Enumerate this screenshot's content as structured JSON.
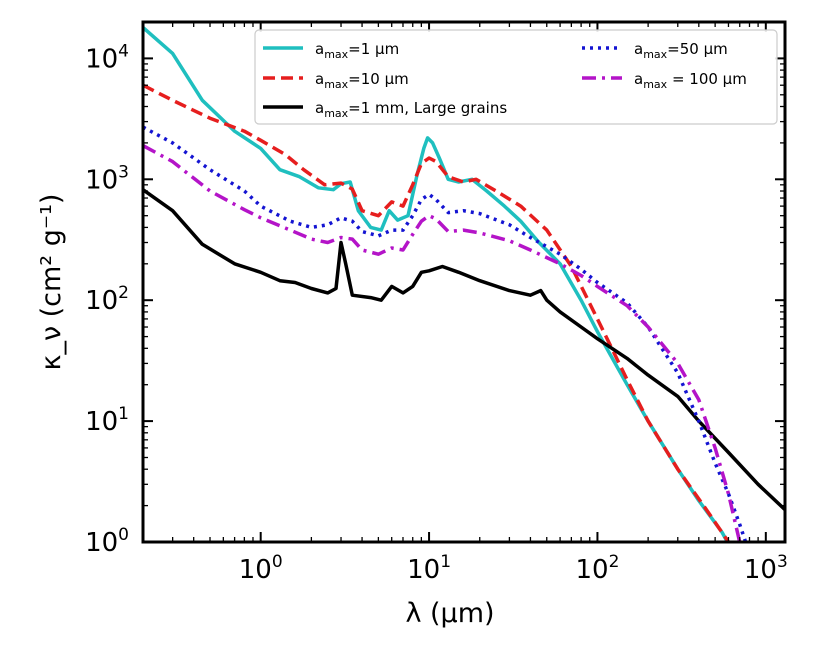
{
  "chart_data": {
    "type": "line",
    "xlabel": "λ (μm)",
    "ylabel": "κ_ν (cm² g⁻¹)",
    "xscale": "log",
    "yscale": "log",
    "xlim": [
      0.2,
      1300
    ],
    "ylim": [
      1,
      20000
    ],
    "grid": false,
    "legend_position": "top-right",
    "x_ticks": [
      {
        "value": 1,
        "mantissa": "10",
        "exp": "0"
      },
      {
        "value": 10,
        "mantissa": "10",
        "exp": "1"
      },
      {
        "value": 100,
        "mantissa": "10",
        "exp": "2"
      },
      {
        "value": 1000,
        "mantissa": "10",
        "exp": "3"
      }
    ],
    "y_ticks": [
      {
        "value": 1,
        "label": "10",
        "exp": "0"
      },
      {
        "value": 10,
        "label": "10",
        "exp": "1"
      },
      {
        "value": 100,
        "label": "10",
        "exp": "2"
      },
      {
        "value": 1000,
        "label": "10",
        "exp": "3"
      },
      {
        "value": 10000,
        "label": "10",
        "exp": "4"
      }
    ],
    "series": [
      {
        "name": "a_max=1 μm",
        "legend_parts": [
          "a",
          "max",
          "=1 μm"
        ],
        "color": "#1fbfbf",
        "dash": "solid",
        "points": [
          [
            0.2,
            18000
          ],
          [
            0.3,
            11000
          ],
          [
            0.45,
            4500
          ],
          [
            0.7,
            2500
          ],
          [
            1.0,
            1800
          ],
          [
            1.3,
            1200
          ],
          [
            1.7,
            1050
          ],
          [
            2.2,
            850
          ],
          [
            2.7,
            820
          ],
          [
            3.0,
            920
          ],
          [
            3.4,
            950
          ],
          [
            3.8,
            550
          ],
          [
            4.5,
            400
          ],
          [
            5.2,
            380
          ],
          [
            5.8,
            550
          ],
          [
            6.5,
            460
          ],
          [
            7.5,
            500
          ],
          [
            8.5,
            1100
          ],
          [
            9.3,
            1800
          ],
          [
            9.8,
            2200
          ],
          [
            10.5,
            2000
          ],
          [
            11.5,
            1500
          ],
          [
            13,
            1000
          ],
          [
            15,
            950
          ],
          [
            18,
            1000
          ],
          [
            22,
            800
          ],
          [
            28,
            600
          ],
          [
            35,
            450
          ],
          [
            45,
            300
          ],
          [
            60,
            200
          ],
          [
            80,
            100
          ],
          [
            100,
            55
          ],
          [
            150,
            20
          ],
          [
            200,
            10
          ],
          [
            300,
            4
          ],
          [
            400,
            2.2
          ],
          [
            550,
            1.2
          ],
          [
            700,
            0.65
          ]
        ]
      },
      {
        "name": "a_max=10 μm",
        "legend_parts": [
          "a",
          "max",
          "=10 μm"
        ],
        "color": "#e61e1e",
        "dash": "dashed",
        "points": [
          [
            0.2,
            6000
          ],
          [
            0.3,
            4500
          ],
          [
            0.5,
            3200
          ],
          [
            0.8,
            2500
          ],
          [
            1.0,
            2100
          ],
          [
            1.4,
            1600
          ],
          [
            1.8,
            1200
          ],
          [
            2.4,
            900
          ],
          [
            3.0,
            930
          ],
          [
            3.5,
            830
          ],
          [
            4.0,
            550
          ],
          [
            5.0,
            500
          ],
          [
            6.0,
            650
          ],
          [
            7.0,
            600
          ],
          [
            8.0,
            900
          ],
          [
            9.0,
            1350
          ],
          [
            10,
            1500
          ],
          [
            11,
            1400
          ],
          [
            13,
            1050
          ],
          [
            16,
            950
          ],
          [
            19,
            1000
          ],
          [
            25,
            800
          ],
          [
            35,
            600
          ],
          [
            50,
            380
          ],
          [
            70,
            190
          ],
          [
            100,
            70
          ],
          [
            150,
            22
          ],
          [
            200,
            10
          ],
          [
            300,
            4
          ],
          [
            450,
            1.8
          ],
          [
            600,
            1.0
          ],
          [
            800,
            0.55
          ]
        ]
      },
      {
        "name": "a_max=1 mm, Large grains",
        "legend_parts": [
          "a",
          "max",
          "=1 mm, Large grains"
        ],
        "color": "#000000",
        "dash": "solid",
        "points": [
          [
            0.2,
            820
          ],
          [
            0.3,
            550
          ],
          [
            0.45,
            290
          ],
          [
            0.7,
            200
          ],
          [
            1.0,
            170
          ],
          [
            1.3,
            145
          ],
          [
            1.6,
            140
          ],
          [
            2.0,
            125
          ],
          [
            2.5,
            115
          ],
          [
            2.8,
            125
          ],
          [
            3.0,
            300
          ],
          [
            3.2,
            200
          ],
          [
            3.5,
            110
          ],
          [
            4.5,
            105
          ],
          [
            5.2,
            100
          ],
          [
            6.0,
            130
          ],
          [
            7.0,
            115
          ],
          [
            8.0,
            130
          ],
          [
            9.0,
            170
          ],
          [
            10,
            175
          ],
          [
            12,
            190
          ],
          [
            15,
            170
          ],
          [
            20,
            145
          ],
          [
            30,
            120
          ],
          [
            40,
            110
          ],
          [
            46,
            120
          ],
          [
            50,
            100
          ],
          [
            60,
            80
          ],
          [
            80,
            60
          ],
          [
            100,
            48
          ],
          [
            150,
            33
          ],
          [
            200,
            24
          ],
          [
            300,
            16
          ],
          [
            400,
            10
          ],
          [
            600,
            5.5
          ],
          [
            900,
            3.0
          ],
          [
            1300,
            1.85
          ]
        ]
      },
      {
        "name": "a_max=50 μm",
        "legend_parts": [
          "a",
          "max",
          "=50 μm"
        ],
        "color": "#1414d2",
        "dash": "dotted",
        "points": [
          [
            0.2,
            2700
          ],
          [
            0.3,
            2000
          ],
          [
            0.5,
            1200
          ],
          [
            0.8,
            800
          ],
          [
            1.0,
            600
          ],
          [
            1.5,
            450
          ],
          [
            2.0,
            400
          ],
          [
            2.5,
            420
          ],
          [
            3.0,
            480
          ],
          [
            3.5,
            450
          ],
          [
            4.0,
            370
          ],
          [
            5.0,
            340
          ],
          [
            6.0,
            380
          ],
          [
            7.0,
            380
          ],
          [
            8.0,
            500
          ],
          [
            9.0,
            680
          ],
          [
            10,
            750
          ],
          [
            11,
            680
          ],
          [
            13,
            530
          ],
          [
            16,
            550
          ],
          [
            20,
            520
          ],
          [
            30,
            420
          ],
          [
            40,
            330
          ],
          [
            60,
            240
          ],
          [
            80,
            180
          ],
          [
            100,
            140
          ],
          [
            150,
            95
          ],
          [
            200,
            60
          ],
          [
            300,
            25
          ],
          [
            400,
            10
          ],
          [
            500,
            4.5
          ],
          [
            600,
            2.5
          ],
          [
            700,
            1.4
          ],
          [
            800,
            0.8
          ]
        ]
      },
      {
        "name": "a_max = 100 μm",
        "legend_parts": [
          "a",
          "max",
          " = 100 μm"
        ],
        "color": "#b414c8",
        "dash": "dashdot",
        "points": [
          [
            0.2,
            1900
          ],
          [
            0.3,
            1400
          ],
          [
            0.5,
            800
          ],
          [
            0.8,
            560
          ],
          [
            1.0,
            480
          ],
          [
            1.5,
            380
          ],
          [
            2.0,
            320
          ],
          [
            2.5,
            300
          ],
          [
            3.0,
            330
          ],
          [
            3.5,
            320
          ],
          [
            4.0,
            260
          ],
          [
            5.0,
            240
          ],
          [
            6.0,
            270
          ],
          [
            7.0,
            260
          ],
          [
            8.0,
            350
          ],
          [
            9.0,
            450
          ],
          [
            10,
            500
          ],
          [
            11,
            470
          ],
          [
            13,
            370
          ],
          [
            16,
            380
          ],
          [
            20,
            360
          ],
          [
            30,
            310
          ],
          [
            40,
            260
          ],
          [
            60,
            200
          ],
          [
            80,
            160
          ],
          [
            100,
            130
          ],
          [
            150,
            90
          ],
          [
            200,
            60
          ],
          [
            300,
            30
          ],
          [
            400,
            15
          ],
          [
            500,
            6
          ],
          [
            600,
            2.5
          ],
          [
            700,
            1.0
          ],
          [
            750,
            0.6
          ]
        ]
      }
    ]
  }
}
